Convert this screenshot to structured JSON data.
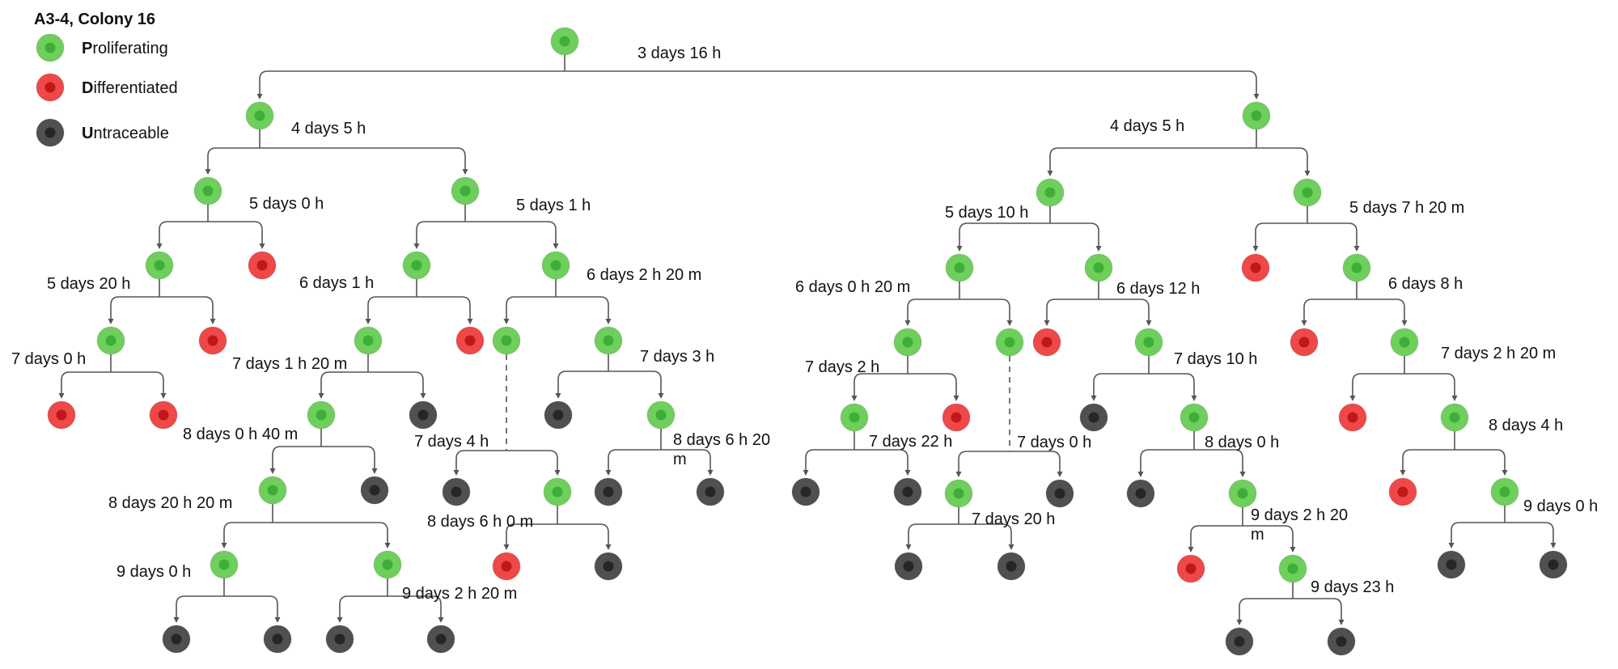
{
  "title": "A3-4, Colony 16",
  "colors": {
    "proliferating": "#6fcf5c",
    "proliferating_core": "#3fae38",
    "differentiated": "#ef4848",
    "differentiated_core": "#c01818",
    "untraceable": "#505050",
    "untraceable_core": "#262626"
  },
  "legend": [
    {
      "state": "proliferating",
      "initial": "P",
      "rest": "roliferating"
    },
    {
      "state": "differentiated",
      "initial": "D",
      "rest": "ifferentiated"
    },
    {
      "state": "untraceable",
      "initial": "U",
      "rest": "ntraceable"
    }
  ],
  "nodes": [
    {
      "id": "n0",
      "state": "proliferating"
    },
    {
      "id": "n1",
      "state": "proliferating",
      "parent": "n0"
    },
    {
      "id": "n2",
      "state": "proliferating",
      "parent": "n0"
    },
    {
      "id": "n3",
      "state": "proliferating",
      "parent": "n1"
    },
    {
      "id": "n4",
      "state": "proliferating",
      "parent": "n1"
    },
    {
      "id": "n5",
      "state": "proliferating",
      "parent": "n3"
    },
    {
      "id": "n6",
      "state": "differentiated",
      "parent": "n3"
    },
    {
      "id": "n7",
      "state": "proliferating",
      "parent": "n5"
    },
    {
      "id": "n8",
      "state": "differentiated",
      "parent": "n5"
    },
    {
      "id": "n9",
      "state": "differentiated",
      "parent": "n7"
    },
    {
      "id": "n10",
      "state": "differentiated",
      "parent": "n7"
    },
    {
      "id": "n11",
      "state": "proliferating",
      "parent": "n4"
    },
    {
      "id": "n12",
      "state": "proliferating",
      "parent": "n4"
    },
    {
      "id": "n13",
      "state": "proliferating",
      "parent": "n11"
    },
    {
      "id": "n14",
      "state": "differentiated",
      "parent": "n11"
    },
    {
      "id": "n15",
      "state": "proliferating",
      "parent": "n13"
    },
    {
      "id": "n16",
      "state": "untraceable",
      "parent": "n13"
    },
    {
      "id": "n17",
      "state": "proliferating",
      "parent": "n15"
    },
    {
      "id": "n18",
      "state": "untraceable",
      "parent": "n15"
    },
    {
      "id": "n19",
      "state": "proliferating",
      "parent": "n17"
    },
    {
      "id": "n20",
      "state": "proliferating",
      "parent": "n17"
    },
    {
      "id": "n21",
      "state": "untraceable",
      "parent": "n19"
    },
    {
      "id": "n22",
      "state": "untraceable",
      "parent": "n19"
    },
    {
      "id": "n23",
      "state": "untraceable",
      "parent": "n20"
    },
    {
      "id": "n24",
      "state": "untraceable",
      "parent": "n20"
    },
    {
      "id": "n25",
      "state": "proliferating",
      "parent": "n12"
    },
    {
      "id": "n26",
      "state": "proliferating",
      "parent": "n12"
    },
    {
      "id": "n27",
      "state": "untraceable",
      "parent": "n25",
      "dashed": true
    },
    {
      "id": "n28",
      "state": "proliferating",
      "parent": "n25",
      "dashed": true
    },
    {
      "id": "n29",
      "state": "differentiated",
      "parent": "n28"
    },
    {
      "id": "n30",
      "state": "untraceable",
      "parent": "n28"
    },
    {
      "id": "n31",
      "state": "untraceable",
      "parent": "n26"
    },
    {
      "id": "n32",
      "state": "proliferating",
      "parent": "n26"
    },
    {
      "id": "n33",
      "state": "untraceable",
      "parent": "n32"
    },
    {
      "id": "n34",
      "state": "untraceable",
      "parent": "n32"
    },
    {
      "id": "n35",
      "state": "proliferating",
      "parent": "n2"
    },
    {
      "id": "n36",
      "state": "proliferating",
      "parent": "n2"
    },
    {
      "id": "n37",
      "state": "proliferating",
      "parent": "n35"
    },
    {
      "id": "n38",
      "state": "proliferating",
      "parent": "n35"
    },
    {
      "id": "n39",
      "state": "proliferating",
      "parent": "n37"
    },
    {
      "id": "n40",
      "state": "proliferating",
      "parent": "n37"
    },
    {
      "id": "n41",
      "state": "proliferating",
      "parent": "n39"
    },
    {
      "id": "n42",
      "state": "differentiated",
      "parent": "n39"
    },
    {
      "id": "n43",
      "state": "untraceable",
      "parent": "n41"
    },
    {
      "id": "n44",
      "state": "untraceable",
      "parent": "n41"
    },
    {
      "id": "n45",
      "state": "proliferating",
      "parent": "n40",
      "dashed": true
    },
    {
      "id": "n46",
      "state": "untraceable",
      "parent": "n40",
      "dashed": true
    },
    {
      "id": "n47",
      "state": "untraceable",
      "parent": "n45"
    },
    {
      "id": "n48",
      "state": "untraceable",
      "parent": "n45"
    },
    {
      "id": "n49",
      "state": "differentiated",
      "parent": "n38"
    },
    {
      "id": "n50",
      "state": "proliferating",
      "parent": "n38"
    },
    {
      "id": "n51",
      "state": "untraceable",
      "parent": "n50"
    },
    {
      "id": "n52",
      "state": "proliferating",
      "parent": "n50"
    },
    {
      "id": "n53",
      "state": "untraceable",
      "parent": "n52"
    },
    {
      "id": "n54",
      "state": "proliferating",
      "parent": "n52"
    },
    {
      "id": "n55",
      "state": "differentiated",
      "parent": "n54"
    },
    {
      "id": "n56",
      "state": "proliferating",
      "parent": "n54"
    },
    {
      "id": "n57",
      "state": "untraceable",
      "parent": "n56"
    },
    {
      "id": "n58",
      "state": "untraceable",
      "parent": "n56"
    },
    {
      "id": "n59",
      "state": "differentiated",
      "parent": "n36"
    },
    {
      "id": "n60",
      "state": "proliferating",
      "parent": "n36"
    },
    {
      "id": "n61",
      "state": "differentiated",
      "parent": "n60"
    },
    {
      "id": "n62",
      "state": "proliferating",
      "parent": "n60"
    },
    {
      "id": "n63",
      "state": "differentiated",
      "parent": "n62"
    },
    {
      "id": "n64",
      "state": "proliferating",
      "parent": "n62"
    },
    {
      "id": "n65",
      "state": "differentiated",
      "parent": "n64"
    },
    {
      "id": "n66",
      "state": "proliferating",
      "parent": "n64"
    },
    {
      "id": "n67",
      "state": "untraceable",
      "parent": "n66"
    },
    {
      "id": "n68",
      "state": "untraceable",
      "parent": "n66"
    }
  ],
  "division_labels": [
    {
      "node": "n0",
      "lines": [
        "3 days 16 h"
      ]
    },
    {
      "node": "n1",
      "lines": [
        "4 days 5 h"
      ]
    },
    {
      "node": "n2",
      "lines": [
        "4 days 5 h"
      ]
    },
    {
      "node": "n3",
      "lines": [
        "5 days 0 h"
      ]
    },
    {
      "node": "n4",
      "lines": [
        "5 days 1 h"
      ]
    },
    {
      "node": "n5",
      "lines": [
        "5 days 20 h"
      ]
    },
    {
      "node": "n7",
      "lines": [
        "7 days 0 h"
      ]
    },
    {
      "node": "n11",
      "lines": [
        "6 days 1 h"
      ]
    },
    {
      "node": "n12",
      "lines": [
        "6 days 2 h 20 m"
      ]
    },
    {
      "node": "n13",
      "lines": [
        "7 days 1 h 20 m"
      ]
    },
    {
      "node": "n15",
      "lines": [
        "8 days 0 h 40 m"
      ]
    },
    {
      "node": "n17",
      "lines": [
        "8 days 20 h 20 m"
      ]
    },
    {
      "node": "n19",
      "lines": [
        "9 days 0 h"
      ]
    },
    {
      "node": "n20",
      "lines": [
        "9 days 2 h 20 m"
      ]
    },
    {
      "node": "n25",
      "lines": [
        "7 days 4 h"
      ]
    },
    {
      "node": "n26",
      "lines": [
        "7 days 3 h"
      ]
    },
    {
      "node": "n28",
      "lines": [
        "8 days 6 h 0 m"
      ]
    },
    {
      "node": "n32",
      "lines": [
        "8 days 6 h 20",
        "m"
      ]
    },
    {
      "node": "n35",
      "lines": [
        "5 days 10 h"
      ]
    },
    {
      "node": "n36",
      "lines": [
        "5 days 7 h 20 m"
      ]
    },
    {
      "node": "n37",
      "lines": [
        "6 days 0 h 20 m"
      ]
    },
    {
      "node": "n38",
      "lines": [
        "6 days 12 h"
      ]
    },
    {
      "node": "n39",
      "lines": [
        "7 days 2 h"
      ]
    },
    {
      "node": "n40",
      "lines": [
        "7 days 0 h"
      ]
    },
    {
      "node": "n41",
      "lines": [
        "7 days 22 h"
      ]
    },
    {
      "node": "n45",
      "lines": [
        "7 days 20 h"
      ]
    },
    {
      "node": "n50",
      "lines": [
        "7 days 10 h"
      ]
    },
    {
      "node": "n52",
      "lines": [
        "8 days 0 h"
      ]
    },
    {
      "node": "n54",
      "lines": [
        "9 days 2 h 20",
        "m"
      ]
    },
    {
      "node": "n56",
      "lines": [
        "9 days 23 h"
      ]
    },
    {
      "node": "n60",
      "lines": [
        "6 days 8 h"
      ]
    },
    {
      "node": "n62",
      "lines": [
        "7 days 2 h 20 m"
      ]
    },
    {
      "node": "n64",
      "lines": [
        "8 days 4 h"
      ]
    },
    {
      "node": "n66",
      "lines": [
        "9 days 0 h"
      ]
    }
  ]
}
